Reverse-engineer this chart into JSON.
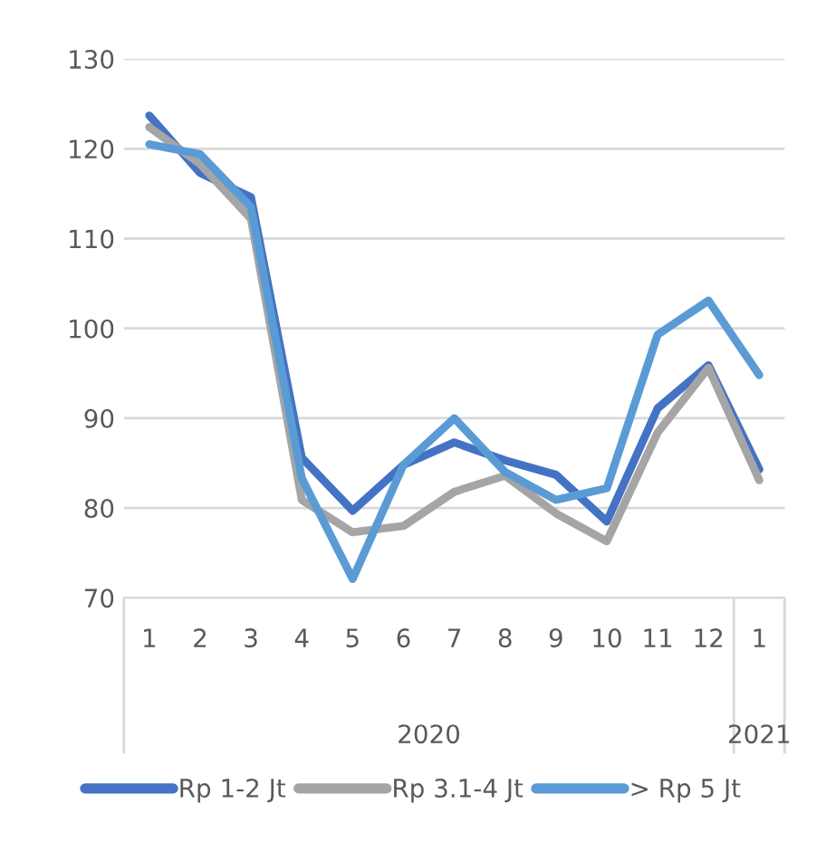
{
  "chart_data": {
    "type": "line",
    "categories": [
      "1",
      "2",
      "3",
      "4",
      "5",
      "6",
      "7",
      "8",
      "9",
      "10",
      "11",
      "12",
      "1"
    ],
    "series": [
      {
        "name": "Rp 1-2 Jt",
        "color": "#4472c4",
        "values": [
          123.7,
          117.3,
          114.6,
          85.6,
          79.7,
          84.8,
          87.3,
          85.3,
          83.7,
          78.5,
          91.1,
          95.9,
          84.3
        ]
      },
      {
        "name": "Rp 3.1-4 Jt",
        "color": "#a5a5a5",
        "values": [
          122.4,
          118.3,
          112.2,
          80.9,
          77.3,
          78.0,
          81.8,
          83.6,
          79.4,
          76.3,
          88.4,
          95.6,
          83.1
        ]
      },
      {
        "name": "> Rp 5 Jt",
        "color": "#5b9bd5",
        "values": [
          120.5,
          119.4,
          113.5,
          83.3,
          72.1,
          84.8,
          90.0,
          84.0,
          80.9,
          82.2,
          99.3,
          103.1,
          94.8
        ]
      }
    ],
    "annotations": [
      "2020",
      "2021"
    ],
    "ylim": [
      70,
      130
    ],
    "yticks": [
      70,
      80,
      90,
      100,
      110,
      120,
      130
    ],
    "grid": "y",
    "legend": "bottom",
    "marker": "none",
    "line_style": "solid"
  }
}
